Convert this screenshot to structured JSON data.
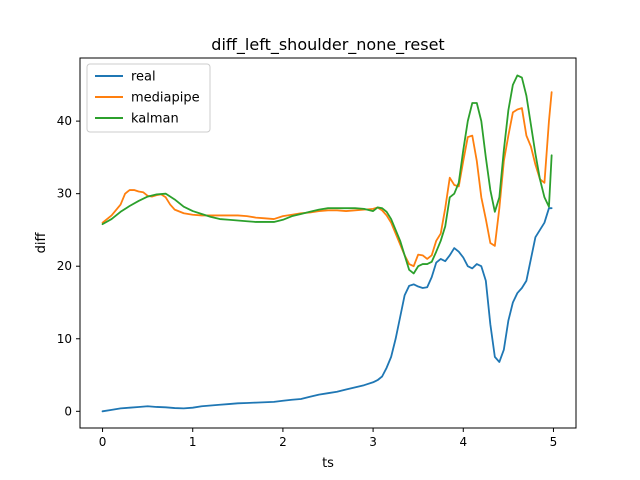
{
  "chart_data": {
    "type": "line",
    "title": "diff_left_shoulder_none_reset",
    "xlabel": "ts",
    "ylabel": "diff",
    "xlim": [
      -0.25,
      5.25
    ],
    "ylim": [
      -2.3,
      48.7
    ],
    "xticks": [
      0,
      1,
      2,
      3,
      4,
      5
    ],
    "yticks": [
      0,
      10,
      20,
      30,
      40
    ],
    "grid": false,
    "legend_position": "top-left",
    "series": [
      {
        "name": "real",
        "color": "#1f77b4",
        "x": [
          0.0,
          0.1,
          0.2,
          0.3,
          0.4,
          0.5,
          0.6,
          0.7,
          0.8,
          0.9,
          1.0,
          1.1,
          1.2,
          1.3,
          1.4,
          1.5,
          1.6,
          1.7,
          1.8,
          1.9,
          2.0,
          2.1,
          2.2,
          2.3,
          2.4,
          2.5,
          2.6,
          2.7,
          2.8,
          2.9,
          3.0,
          3.05,
          3.1,
          3.15,
          3.2,
          3.25,
          3.3,
          3.35,
          3.4,
          3.45,
          3.5,
          3.55,
          3.6,
          3.65,
          3.7,
          3.75,
          3.8,
          3.85,
          3.9,
          3.95,
          4.0,
          4.05,
          4.1,
          4.15,
          4.2,
          4.25,
          4.3,
          4.35,
          4.4,
          4.45,
          4.5,
          4.55,
          4.6,
          4.65,
          4.7,
          4.75,
          4.8,
          4.85,
          4.9,
          4.95,
          4.98
        ],
        "y": [
          0.0,
          0.2,
          0.4,
          0.5,
          0.6,
          0.7,
          0.6,
          0.55,
          0.45,
          0.4,
          0.5,
          0.7,
          0.8,
          0.9,
          1.0,
          1.1,
          1.15,
          1.2,
          1.25,
          1.3,
          1.45,
          1.6,
          1.7,
          2.0,
          2.3,
          2.5,
          2.7,
          3.0,
          3.3,
          3.6,
          4.0,
          4.3,
          4.8,
          6.0,
          7.5,
          10.0,
          13.0,
          16.0,
          17.3,
          17.5,
          17.2,
          17.0,
          17.1,
          18.5,
          20.5,
          21.0,
          20.7,
          21.5,
          22.5,
          22.0,
          21.2,
          20.0,
          19.7,
          20.3,
          20.0,
          18.0,
          12.0,
          7.5,
          6.8,
          8.5,
          12.5,
          15.0,
          16.3,
          17.0,
          18.0,
          21.0,
          24.0,
          25.0,
          26.0,
          28.0,
          28.0
        ]
      },
      {
        "name": "mediapipe",
        "color": "#ff7f0e",
        "x": [
          0.0,
          0.1,
          0.2,
          0.25,
          0.3,
          0.35,
          0.4,
          0.45,
          0.5,
          0.55,
          0.6,
          0.65,
          0.7,
          0.75,
          0.8,
          0.9,
          1.0,
          1.1,
          1.2,
          1.3,
          1.4,
          1.5,
          1.6,
          1.7,
          1.8,
          1.9,
          2.0,
          2.1,
          2.2,
          2.3,
          2.4,
          2.5,
          2.6,
          2.7,
          2.8,
          2.9,
          3.0,
          3.05,
          3.1,
          3.15,
          3.2,
          3.25,
          3.3,
          3.35,
          3.4,
          3.45,
          3.5,
          3.55,
          3.6,
          3.65,
          3.7,
          3.75,
          3.8,
          3.85,
          3.9,
          3.95,
          4.0,
          4.05,
          4.1,
          4.15,
          4.2,
          4.25,
          4.3,
          4.35,
          4.4,
          4.45,
          4.5,
          4.55,
          4.6,
          4.65,
          4.7,
          4.75,
          4.8,
          4.85,
          4.9,
          4.95,
          4.98
        ],
        "y": [
          26.0,
          27.0,
          28.5,
          30.0,
          30.5,
          30.5,
          30.3,
          30.2,
          29.7,
          29.6,
          29.8,
          29.9,
          29.5,
          28.5,
          27.8,
          27.3,
          27.1,
          27.0,
          27.0,
          27.0,
          27.0,
          27.0,
          26.9,
          26.7,
          26.6,
          26.5,
          26.9,
          27.1,
          27.3,
          27.4,
          27.6,
          27.7,
          27.7,
          27.6,
          27.7,
          27.8,
          27.9,
          28.1,
          27.7,
          27.0,
          26.0,
          24.5,
          23.0,
          21.5,
          20.3,
          20.0,
          21.6,
          21.5,
          21.0,
          21.5,
          23.5,
          24.5,
          28.0,
          32.2,
          31.2,
          31.0,
          34.5,
          37.8,
          38.0,
          34.5,
          29.5,
          26.5,
          23.2,
          22.8,
          28.0,
          34.5,
          38.0,
          41.2,
          41.6,
          41.8,
          38.0,
          36.5,
          34.0,
          32.0,
          31.5,
          40.0,
          44.0
        ]
      },
      {
        "name": "kalman",
        "color": "#2ca02c",
        "x": [
          0.0,
          0.1,
          0.2,
          0.3,
          0.4,
          0.5,
          0.6,
          0.7,
          0.8,
          0.9,
          1.0,
          1.1,
          1.2,
          1.3,
          1.4,
          1.5,
          1.6,
          1.7,
          1.8,
          1.9,
          2.0,
          2.1,
          2.2,
          2.3,
          2.4,
          2.5,
          2.6,
          2.7,
          2.8,
          2.9,
          3.0,
          3.05,
          3.1,
          3.15,
          3.2,
          3.25,
          3.3,
          3.35,
          3.4,
          3.45,
          3.5,
          3.55,
          3.6,
          3.65,
          3.7,
          3.75,
          3.8,
          3.85,
          3.9,
          3.95,
          4.0,
          4.05,
          4.1,
          4.15,
          4.2,
          4.25,
          4.3,
          4.35,
          4.4,
          4.45,
          4.5,
          4.55,
          4.6,
          4.65,
          4.7,
          4.75,
          4.8,
          4.85,
          4.9,
          4.95,
          4.98
        ],
        "y": [
          25.8,
          26.5,
          27.5,
          28.3,
          29.0,
          29.6,
          29.9,
          30.0,
          29.2,
          28.2,
          27.6,
          27.2,
          26.8,
          26.5,
          26.4,
          26.3,
          26.2,
          26.1,
          26.1,
          26.1,
          26.4,
          26.9,
          27.2,
          27.5,
          27.8,
          28.0,
          28.0,
          28.0,
          28.0,
          27.9,
          27.6,
          28.1,
          28.0,
          27.5,
          26.5,
          25.0,
          23.5,
          21.5,
          19.5,
          19.0,
          20.0,
          20.3,
          20.3,
          20.6,
          22.0,
          23.5,
          25.5,
          29.5,
          30.0,
          31.5,
          36.0,
          40.0,
          42.5,
          42.5,
          40.0,
          35.0,
          30.5,
          27.5,
          29.5,
          36.0,
          41.5,
          45.0,
          46.3,
          46.0,
          43.5,
          39.5,
          35.5,
          32.0,
          29.5,
          28.2,
          35.3
        ]
      }
    ]
  }
}
